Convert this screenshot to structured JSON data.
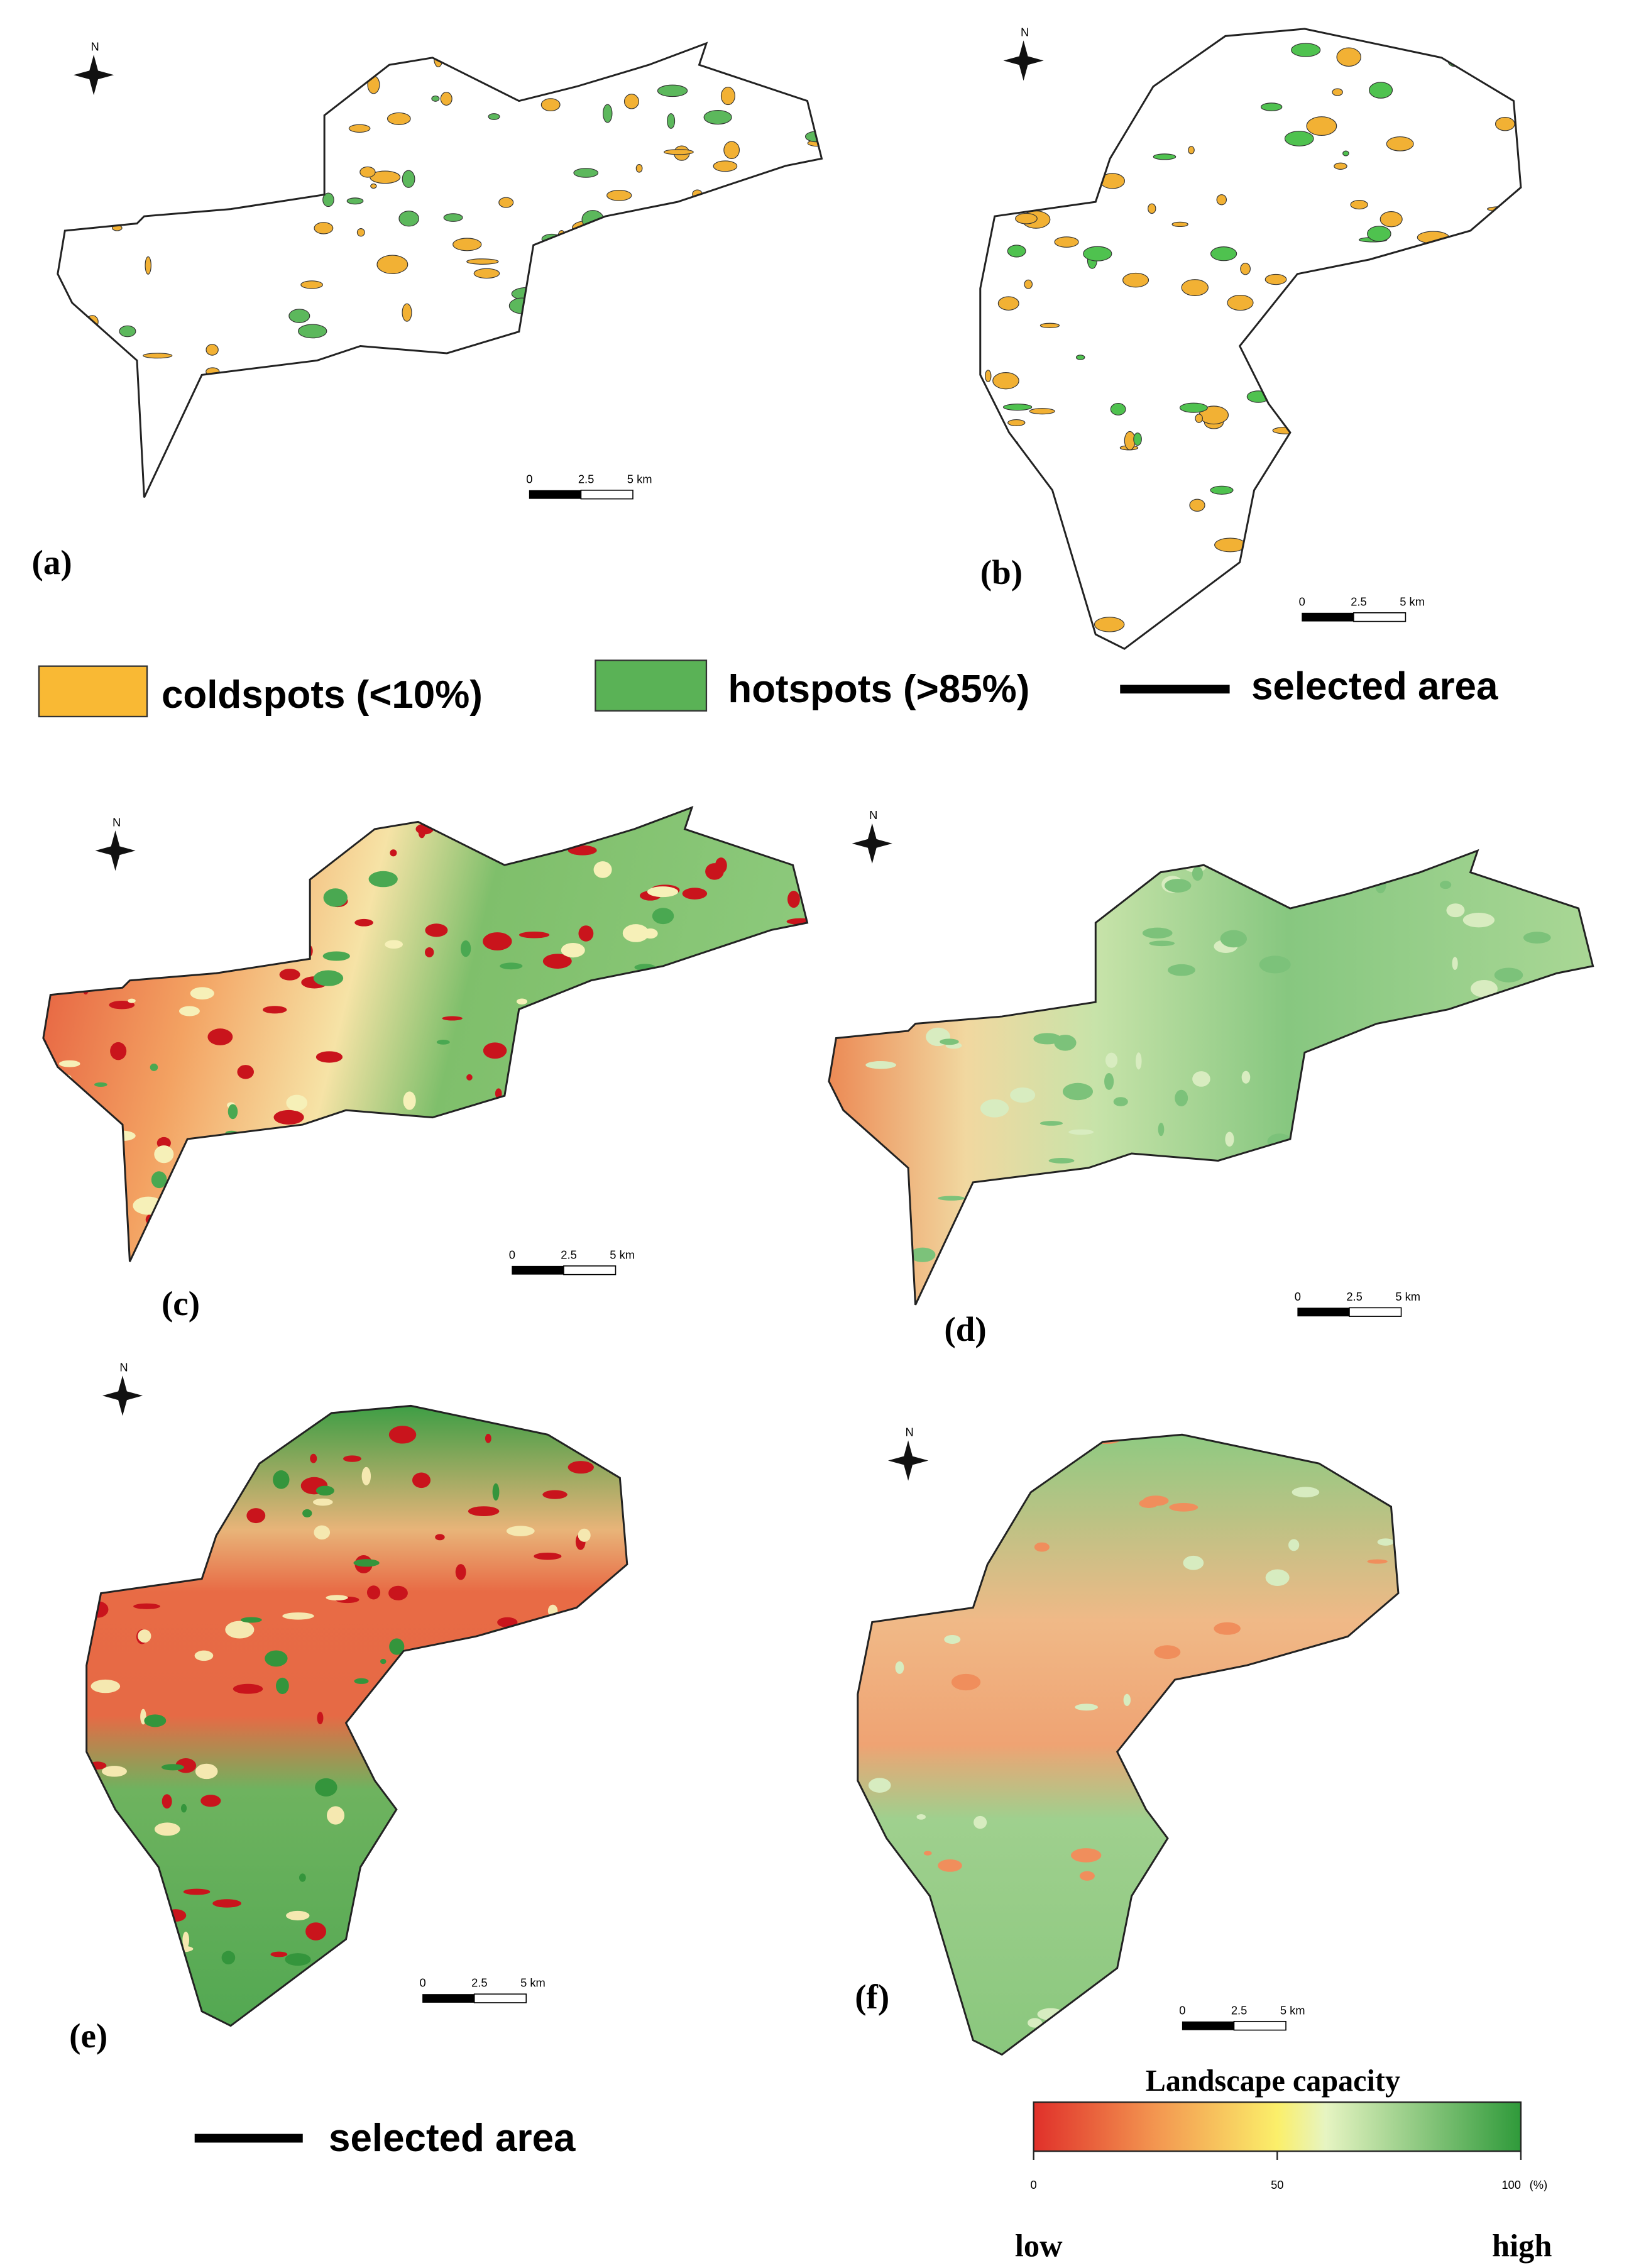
{
  "panels": [
    {
      "label": "(a)",
      "north": "N",
      "scale": [
        "0",
        "2.5",
        "5 km"
      ]
    },
    {
      "label": "(b)",
      "north": "N",
      "scale": [
        "0",
        "2.5",
        "5 km"
      ]
    },
    {
      "label": "(c)",
      "north": "N",
      "scale": [
        "0",
        "2.5",
        "5 km"
      ]
    },
    {
      "label": "(d)",
      "north": "N",
      "scale": [
        "0",
        "2.5",
        "5 km"
      ]
    },
    {
      "label": "(e)",
      "north": "N",
      "scale": [
        "0",
        "2.5",
        "5 km"
      ]
    },
    {
      "label": "(f)",
      "north": "N",
      "scale": [
        "0",
        "2.5",
        "5 km"
      ]
    }
  ],
  "legend_top": {
    "cold": "coldspots (<10%)",
    "hot": "hotspots (>85%)",
    "selected": "selected area"
  },
  "legend_bottom": {
    "selected": "selected area"
  },
  "colorbar": {
    "title": "Landscape capacity",
    "ticks": [
      0,
      50,
      100
    ],
    "unit": "(%)",
    "low": "low",
    "high": "high"
  }
}
